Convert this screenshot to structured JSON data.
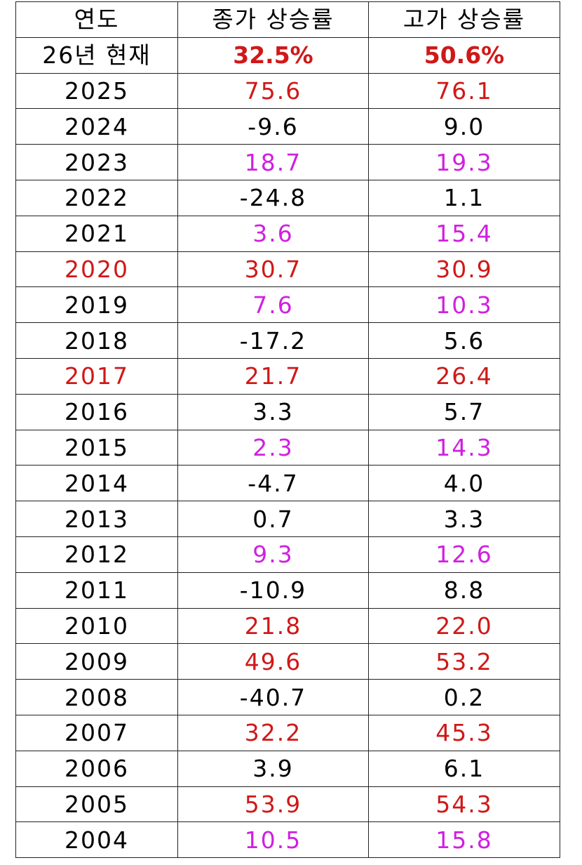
{
  "table": {
    "header": [
      "연도",
      "종가 상승률",
      "고가 상승률"
    ],
    "rows": [
      {
        "cells": [
          "26년 현재",
          "32.5%",
          "50.6%"
        ],
        "colors": [
          "#000000",
          "#d01818",
          "#d01818"
        ]
      },
      {
        "cells": [
          "2025",
          "75.6",
          "76.1"
        ],
        "colors": [
          "#000000",
          "#d01818",
          "#d01818"
        ]
      },
      {
        "cells": [
          "2024",
          "-9.6",
          "9.0"
        ],
        "colors": [
          "#000000",
          "#000000",
          "#000000"
        ]
      },
      {
        "cells": [
          "2023",
          "18.7",
          "19.3"
        ],
        "colors": [
          "#000000",
          "#d020e0",
          "#d020e0"
        ]
      },
      {
        "cells": [
          "2022",
          "-24.8",
          "1.1"
        ],
        "colors": [
          "#000000",
          "#000000",
          "#000000"
        ]
      },
      {
        "cells": [
          "2021",
          "3.6",
          "15.4"
        ],
        "colors": [
          "#000000",
          "#d020e0",
          "#d020e0"
        ]
      },
      {
        "cells": [
          "2020",
          "30.7",
          "30.9"
        ],
        "colors": [
          "#d01818",
          "#d01818",
          "#d01818"
        ]
      },
      {
        "cells": [
          "2019",
          "7.6",
          "10.3"
        ],
        "colors": [
          "#000000",
          "#d020e0",
          "#d020e0"
        ]
      },
      {
        "cells": [
          "2018",
          "-17.2",
          "5.6"
        ],
        "colors": [
          "#000000",
          "#000000",
          "#000000"
        ]
      },
      {
        "cells": [
          "2017",
          "21.7",
          "26.4"
        ],
        "colors": [
          "#d01818",
          "#d01818",
          "#d01818"
        ]
      },
      {
        "cells": [
          "2016",
          "3.3",
          "5.7"
        ],
        "colors": [
          "#000000",
          "#000000",
          "#000000"
        ]
      },
      {
        "cells": [
          "2015",
          "2.3",
          "14.3"
        ],
        "colors": [
          "#000000",
          "#d020e0",
          "#d020e0"
        ]
      },
      {
        "cells": [
          "2014",
          "-4.7",
          "4.0"
        ],
        "colors": [
          "#000000",
          "#000000",
          "#000000"
        ]
      },
      {
        "cells": [
          "2013",
          "0.7",
          "3.3"
        ],
        "colors": [
          "#000000",
          "#000000",
          "#000000"
        ]
      },
      {
        "cells": [
          "2012",
          "9.3",
          "12.6"
        ],
        "colors": [
          "#000000",
          "#d020e0",
          "#d020e0"
        ]
      },
      {
        "cells": [
          "2011",
          "-10.9",
          "8.8"
        ],
        "colors": [
          "#000000",
          "#000000",
          "#000000"
        ]
      },
      {
        "cells": [
          "2010",
          "21.8",
          "22.0"
        ],
        "colors": [
          "#000000",
          "#d01818",
          "#d01818"
        ]
      },
      {
        "cells": [
          "2009",
          "49.6",
          "53.2"
        ],
        "colors": [
          "#000000",
          "#d01818",
          "#d01818"
        ]
      },
      {
        "cells": [
          "2008",
          "-40.7",
          "0.2"
        ],
        "colors": [
          "#000000",
          "#000000",
          "#000000"
        ]
      },
      {
        "cells": [
          "2007",
          "32.2",
          "45.3"
        ],
        "colors": [
          "#000000",
          "#d01818",
          "#d01818"
        ]
      },
      {
        "cells": [
          "2006",
          "3.9",
          "6.1"
        ],
        "colors": [
          "#000000",
          "#000000",
          "#000000"
        ]
      },
      {
        "cells": [
          "2005",
          "53.9",
          "54.3"
        ],
        "colors": [
          "#000000",
          "#d01818",
          "#d01818"
        ]
      },
      {
        "cells": [
          "2004",
          "10.5",
          "15.8"
        ],
        "colors": [
          "#000000",
          "#d020e0",
          "#d020e0"
        ]
      }
    ]
  }
}
